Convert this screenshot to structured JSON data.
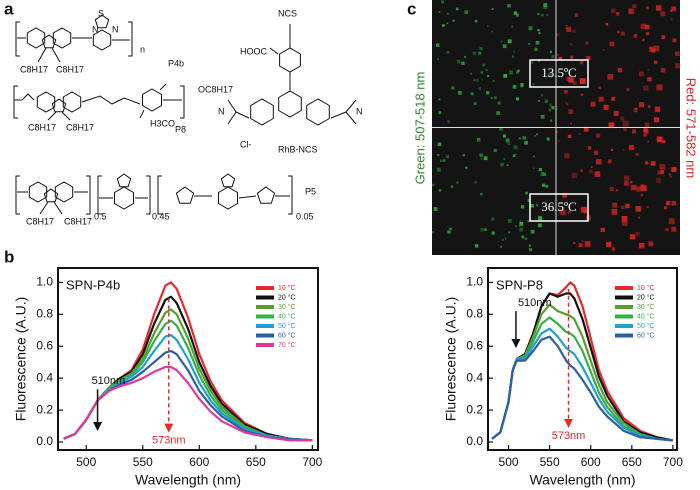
{
  "panel_labels": [
    "a",
    "b",
    "c"
  ],
  "structure_texts": [
    "C8H17",
    "C8H17",
    "n",
    "P4b",
    "OC8H17",
    "C8H17",
    "C8H17",
    "H3CO",
    "P8",
    "NCS",
    "HOOC",
    "Cl-",
    "N",
    "N",
    "RhB-NCS",
    "C8H17",
    "C8H17",
    "0.5",
    "0.45",
    "0.05",
    "P5",
    "S",
    "N",
    "N"
  ],
  "micrograph": {
    "green_label": "Green: 507-518 nm",
    "red_label": "Red: 571-582 nm",
    "temperatures": [
      "13.5ºC",
      "36.5ºC"
    ]
  },
  "chart_data": [
    {
      "type": "line",
      "title": "SPN-P4b",
      "xlabel": "Wavelength (nm)",
      "ylabel": "Fluorescence (A.U.)",
      "annotations": [
        "510nm",
        "573nm"
      ],
      "x": [
        480,
        490,
        500,
        510,
        520,
        530,
        540,
        550,
        560,
        570,
        575,
        580,
        590,
        600,
        610,
        620,
        640,
        660,
        680,
        700
      ],
      "series": [
        {
          "name": "10 °C",
          "color": "#e8292b",
          "values": [
            0.02,
            0.05,
            0.14,
            0.26,
            0.34,
            0.4,
            0.45,
            0.58,
            0.8,
            0.98,
            1.0,
            0.96,
            0.78,
            0.55,
            0.38,
            0.26,
            0.12,
            0.05,
            0.02,
            0.01
          ]
        },
        {
          "name": "20 °C",
          "color": "#111111",
          "values": [
            0.02,
            0.05,
            0.14,
            0.26,
            0.34,
            0.4,
            0.44,
            0.55,
            0.74,
            0.89,
            0.91,
            0.87,
            0.71,
            0.5,
            0.35,
            0.24,
            0.11,
            0.05,
            0.02,
            0.01
          ]
        },
        {
          "name": "30 °C",
          "color": "#5c9c2c",
          "values": [
            0.02,
            0.05,
            0.14,
            0.26,
            0.34,
            0.39,
            0.43,
            0.52,
            0.68,
            0.81,
            0.83,
            0.8,
            0.65,
            0.46,
            0.32,
            0.22,
            0.1,
            0.04,
            0.02,
            0.01
          ]
        },
        {
          "name": "40 °C",
          "color": "#33b24a",
          "values": [
            0.02,
            0.05,
            0.14,
            0.26,
            0.33,
            0.38,
            0.42,
            0.5,
            0.63,
            0.74,
            0.76,
            0.73,
            0.59,
            0.42,
            0.29,
            0.2,
            0.09,
            0.04,
            0.02,
            0.01
          ]
        },
        {
          "name": "50 °C",
          "color": "#1ea0d6",
          "values": [
            0.02,
            0.05,
            0.14,
            0.26,
            0.33,
            0.37,
            0.41,
            0.47,
            0.57,
            0.66,
            0.67,
            0.64,
            0.52,
            0.37,
            0.26,
            0.18,
            0.08,
            0.04,
            0.02,
            0.01
          ]
        },
        {
          "name": "60 °C",
          "color": "#2b5fa8",
          "values": [
            0.02,
            0.05,
            0.14,
            0.26,
            0.32,
            0.36,
            0.39,
            0.44,
            0.5,
            0.56,
            0.57,
            0.55,
            0.45,
            0.32,
            0.23,
            0.16,
            0.07,
            0.03,
            0.02,
            0.01
          ]
        },
        {
          "name": "70 °C",
          "color": "#e0389a",
          "values": [
            0.02,
            0.05,
            0.14,
            0.26,
            0.32,
            0.35,
            0.37,
            0.4,
            0.44,
            0.47,
            0.47,
            0.45,
            0.37,
            0.27,
            0.19,
            0.13,
            0.06,
            0.03,
            0.01,
            0.01
          ]
        }
      ],
      "xlim": [
        475,
        705
      ],
      "xticks": [
        500,
        550,
        600,
        650,
        700
      ],
      "ylim": [
        -0.05,
        1.09
      ],
      "yticks": [
        {
          "value": 0,
          "label": "0.0"
        },
        0.2,
        0.4,
        0.6,
        0.8,
        {
          "value": 1,
          "label": "1.0"
        }
      ]
    },
    {
      "type": "line",
      "title": "SPN-P8",
      "xlabel": "Wavelength (nm)",
      "ylabel": "Fluorescence (A.U.)",
      "annotations": [
        "510nm",
        "573nm"
      ],
      "x": [
        480,
        490,
        500,
        505,
        510,
        520,
        530,
        540,
        550,
        560,
        570,
        575,
        580,
        590,
        600,
        610,
        620,
        640,
        660,
        680,
        700
      ],
      "series": [
        {
          "name": "10 °C",
          "color": "#e8292b",
          "values": [
            0.02,
            0.06,
            0.25,
            0.45,
            0.52,
            0.55,
            0.68,
            0.85,
            0.93,
            0.92,
            0.97,
            1.0,
            0.98,
            0.85,
            0.65,
            0.45,
            0.32,
            0.15,
            0.07,
            0.03,
            0.01
          ]
        },
        {
          "name": "20 °C",
          "color": "#111111",
          "values": [
            0.02,
            0.06,
            0.25,
            0.45,
            0.52,
            0.55,
            0.68,
            0.85,
            0.93,
            0.91,
            0.93,
            0.93,
            0.9,
            0.77,
            0.59,
            0.41,
            0.29,
            0.13,
            0.06,
            0.03,
            0.01
          ]
        },
        {
          "name": "30 °C",
          "color": "#5c9c2c",
          "values": [
            0.02,
            0.06,
            0.25,
            0.45,
            0.52,
            0.54,
            0.66,
            0.8,
            0.86,
            0.82,
            0.8,
            0.79,
            0.77,
            0.66,
            0.51,
            0.36,
            0.25,
            0.12,
            0.05,
            0.02,
            0.01
          ]
        },
        {
          "name": "40 °C",
          "color": "#33b24a",
          "values": [
            0.02,
            0.06,
            0.25,
            0.45,
            0.52,
            0.53,
            0.63,
            0.74,
            0.78,
            0.74,
            0.69,
            0.68,
            0.66,
            0.57,
            0.44,
            0.31,
            0.22,
            0.1,
            0.05,
            0.02,
            0.01
          ]
        },
        {
          "name": "50 °C",
          "color": "#1ea0d6",
          "values": [
            0.02,
            0.06,
            0.25,
            0.45,
            0.52,
            0.52,
            0.6,
            0.68,
            0.71,
            0.66,
            0.59,
            0.57,
            0.55,
            0.47,
            0.37,
            0.27,
            0.19,
            0.09,
            0.04,
            0.02,
            0.01
          ]
        },
        {
          "name": "60 °C",
          "color": "#2b5fa8",
          "values": [
            0.02,
            0.06,
            0.25,
            0.45,
            0.51,
            0.51,
            0.57,
            0.64,
            0.66,
            0.6,
            0.51,
            0.48,
            0.46,
            0.39,
            0.31,
            0.22,
            0.16,
            0.07,
            0.03,
            0.02,
            0.01
          ]
        }
      ],
      "xlim": [
        475,
        705
      ],
      "xticks": [
        500,
        550,
        600,
        650,
        700
      ],
      "ylim": [
        -0.05,
        1.09
      ],
      "yticks": [
        {
          "value": 0,
          "label": "0.0"
        },
        0.2,
        0.4,
        0.6,
        0.8,
        {
          "value": 1,
          "label": "1.0"
        }
      ]
    }
  ]
}
